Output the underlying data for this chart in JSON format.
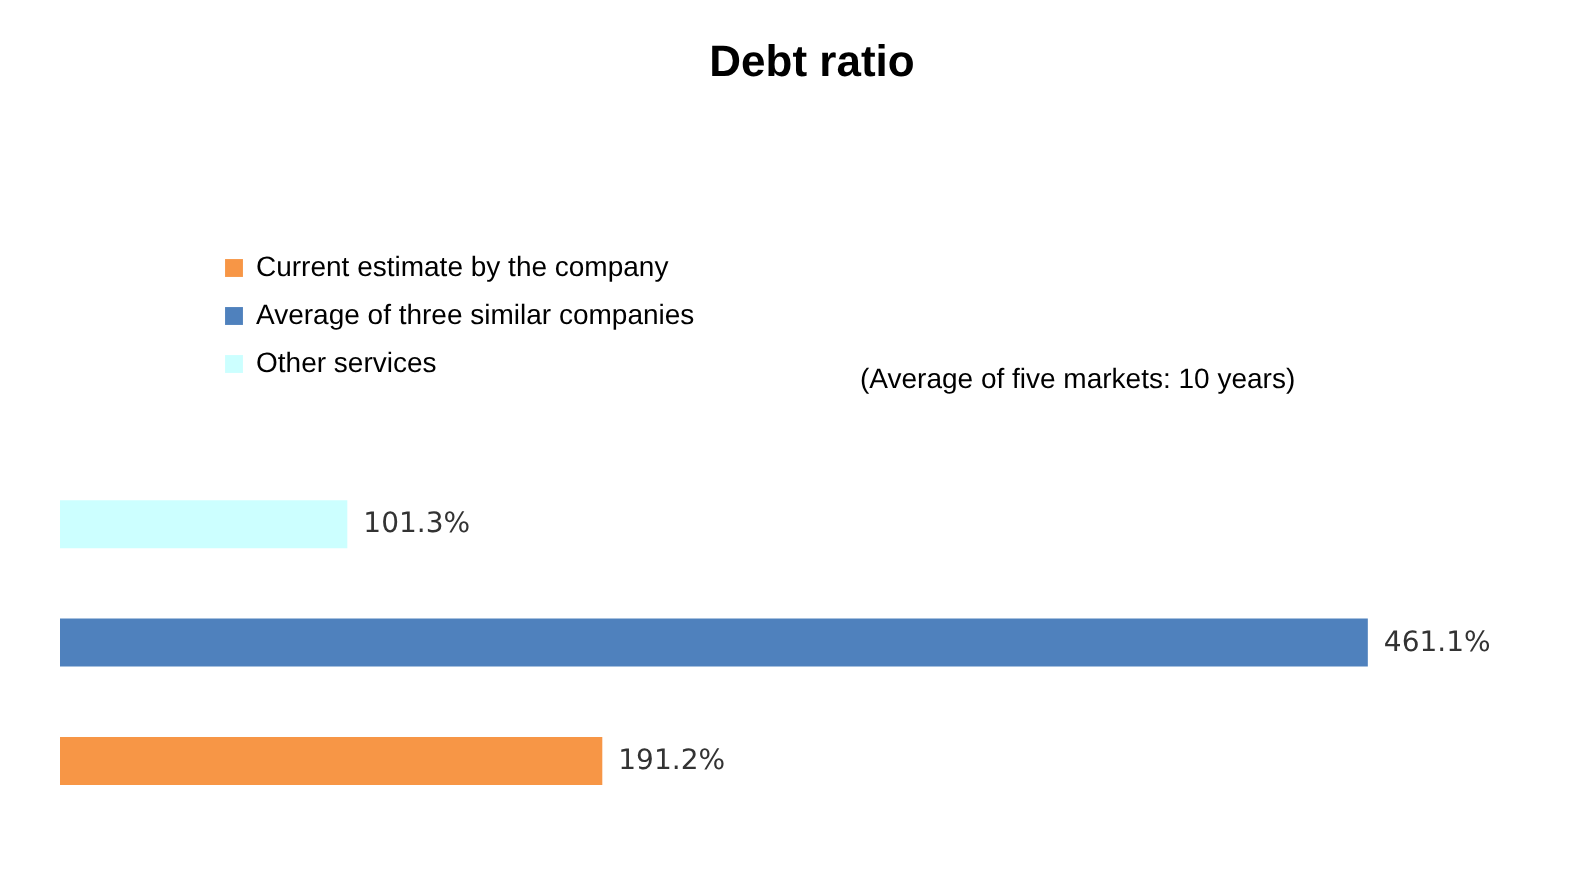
{
  "chart_data": {
    "type": "bar",
    "orientation": "horizontal",
    "title": "Debt ratio",
    "categories": [
      null,
      null,
      null
    ],
    "series": [
      {
        "name": "Current estimate by the company",
        "color": "#f79646",
        "values": [
          null,
          null,
          191.2
        ],
        "value_labels": [
          null,
          null,
          "191.2%"
        ]
      },
      {
        "name": "Average of three similar companies",
        "color": "#4f81bd",
        "values": [
          null,
          461.1,
          null
        ],
        "value_labels": [
          null,
          "461.1%",
          null
        ]
      },
      {
        "name": "Other services",
        "color": "#ccffff",
        "values": [
          101.3,
          null,
          null
        ],
        "value_labels": [
          "101.3%",
          null,
          null
        ]
      }
    ],
    "annotations": [
      "(Average of five markets: 10 years)"
    ],
    "legend": "top left",
    "stacked": true
  }
}
